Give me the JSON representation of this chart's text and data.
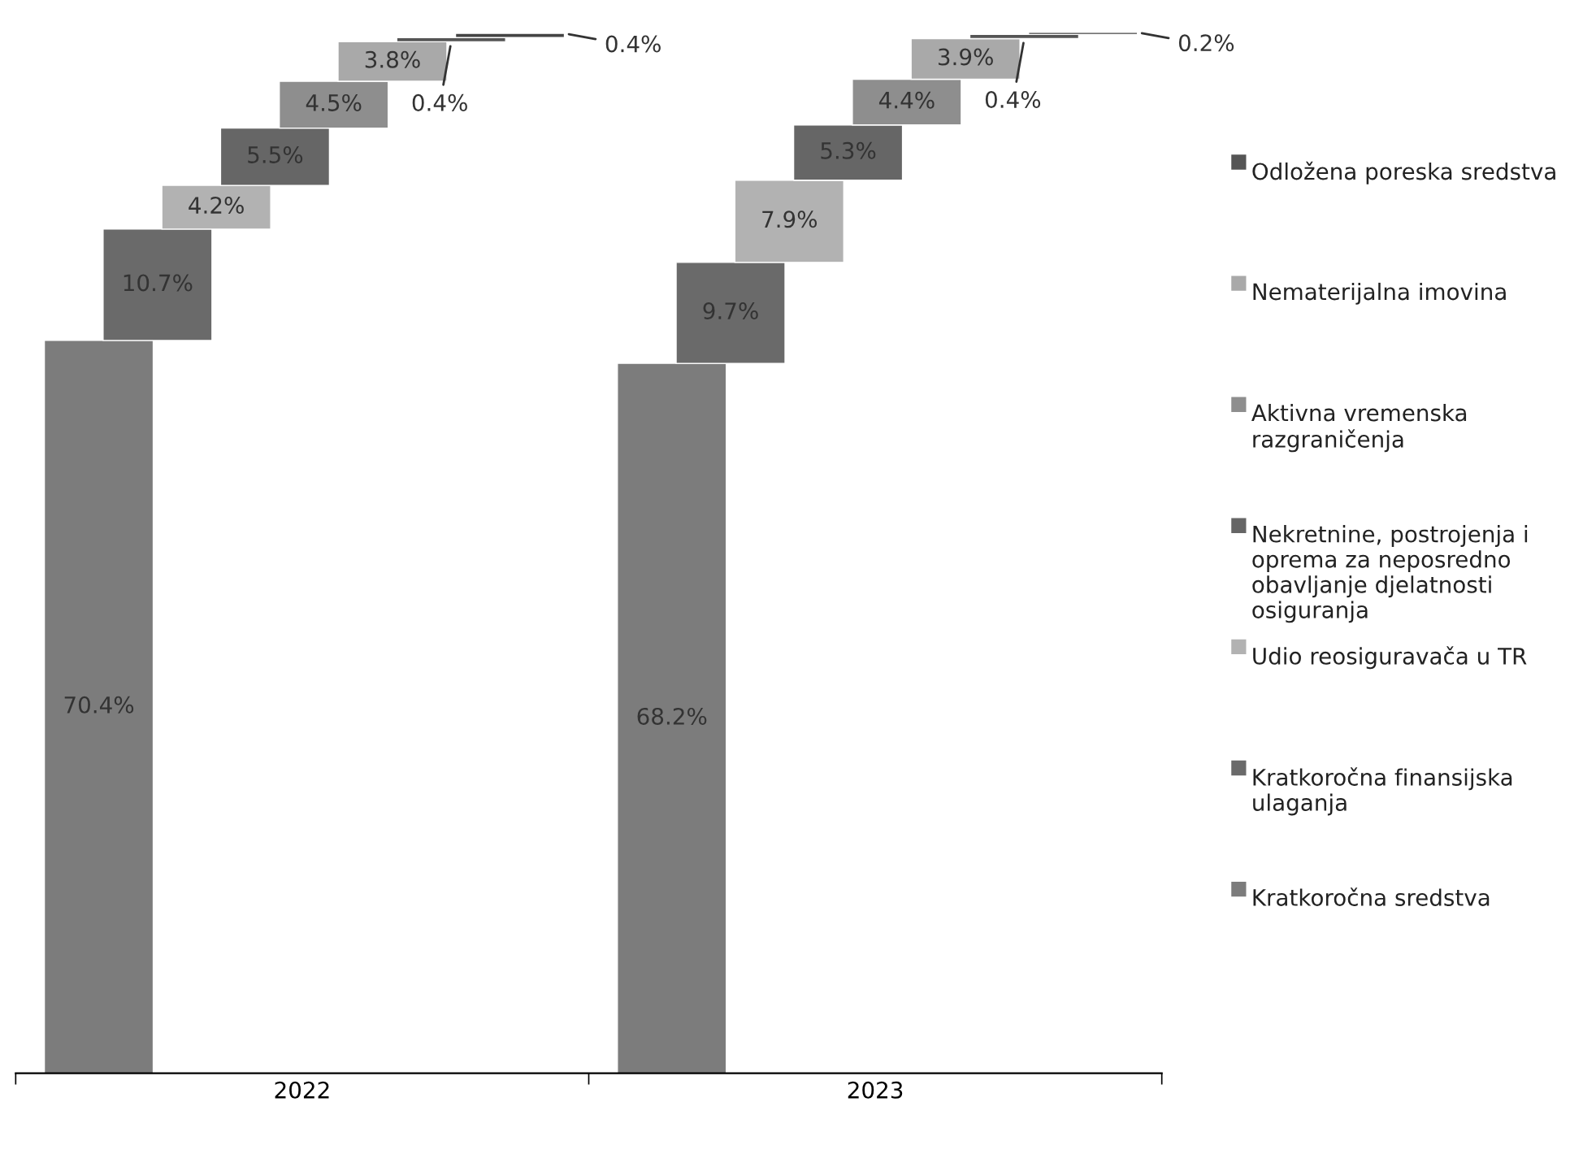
{
  "chart_data": {
    "type": "bar",
    "stacked": true,
    "categories": [
      "2022",
      "2023"
    ],
    "legend": "right",
    "series": [
      {
        "name": "Kratkoročna sredstva",
        "color": "#7c7c7c",
        "values": [
          70.4,
          68.2
        ],
        "value_labels": [
          "70.4%",
          "68.2%"
        ]
      },
      {
        "name": "Kratkoročna finansijska ulaganja",
        "color": "#6a6a6a",
        "values": [
          10.7,
          9.7
        ],
        "value_labels": [
          "10.7%",
          "9.7%"
        ]
      },
      {
        "name": "Udio reosiguravača u TR",
        "color": "#b2b2b2",
        "values": [
          4.2,
          7.9
        ],
        "value_labels": [
          "4.2%",
          "7.9%"
        ]
      },
      {
        "name": "Nekretnine, postrojenja i oprema za neposredno obavljanje djelatnosti osiguranja",
        "color": "#666666",
        "values": [
          5.5,
          5.3
        ],
        "value_labels": [
          "5.5%",
          "5.3%"
        ]
      },
      {
        "name": "Aktivna vremenska razgraničenja",
        "color": "#8e8e8e",
        "values": [
          4.5,
          4.4
        ],
        "value_labels": [
          "4.5%",
          "4.4%"
        ]
      },
      {
        "name": "Nematerijalna imovina",
        "color": "#a9a9a9",
        "values": [
          3.8,
          3.9
        ],
        "value_labels": [
          "3.8%",
          "3.9%"
        ]
      },
      {
        "name": "Odložena poreska sredstva",
        "color": "#555555",
        "values": [
          0.4,
          0.4
        ],
        "value_labels": [
          "0.4%",
          "0.4%"
        ]
      },
      {
        "color": "#444444",
        "values": [
          0.4,
          0.2
        ],
        "value_labels": [
          "0.4%",
          "0.2%"
        ]
      }
    ]
  }
}
